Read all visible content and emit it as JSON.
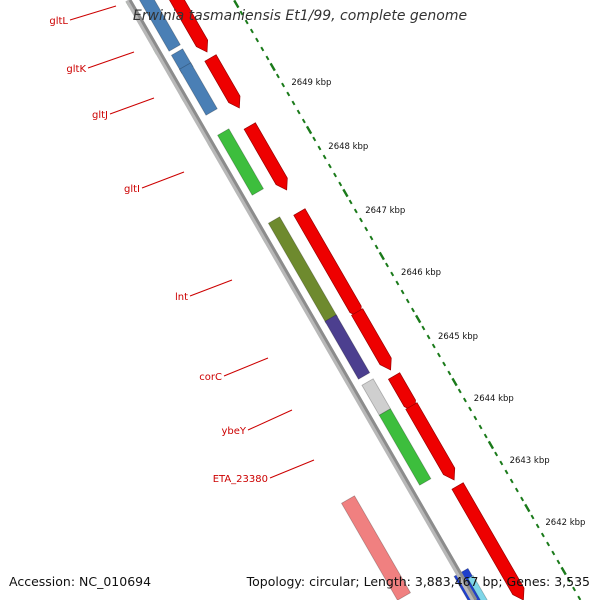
{
  "title": "Erwinia tasmaniensis Et1/99, complete genome",
  "footer": {
    "accession": "Accession: NC_010694",
    "summary": "Topology: circular; Length: 3,883,467 bp; Genes: 3,535"
  },
  "colors": {
    "backbone": "#8c8c8c",
    "gene_arrow": "#ee0000",
    "label": "#cc0000",
    "tick": "#1a7a1a"
  },
  "scale_labels": [
    "2649 kbp",
    "2648 kbp",
    "2647 kbp",
    "2646 kbp",
    "2645 kbp",
    "2644 kbp",
    "2643 kbp",
    "2642 kbp"
  ],
  "genes": [
    {
      "name": "gltL",
      "color": "#4a7fb5"
    },
    {
      "name": "gltK",
      "color": "#4a7fb5"
    },
    {
      "name": "gltJ",
      "color": "#4a7fb5"
    },
    {
      "name": "gltI",
      "color": "#3dbe3d"
    },
    {
      "name": "lnt",
      "color": "#6e8a2e"
    },
    {
      "name": "corC",
      "color": "#4c3f8f"
    },
    {
      "name": "ybeY",
      "color": "#cfcfcf"
    },
    {
      "name": "ETA_23380",
      "color": "#3dbe3d"
    }
  ],
  "extra_features": [
    {
      "color": "#f08080"
    },
    {
      "color": "#1f3fcc"
    }
  ]
}
